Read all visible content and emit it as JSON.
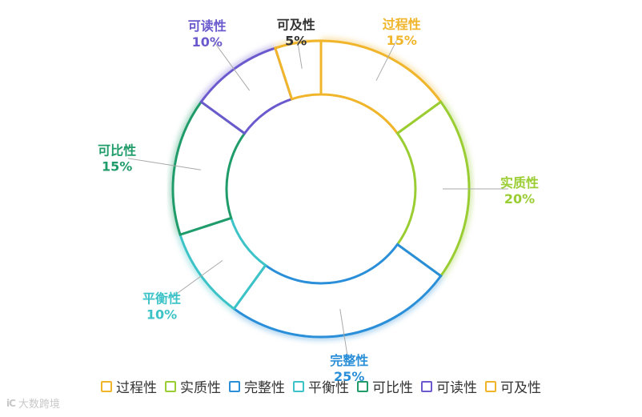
{
  "chart_data": {
    "type": "pie",
    "variant": "donut",
    "categories": [
      "过程性",
      "实质性",
      "完整性",
      "平衡性",
      "可比性",
      "可读性",
      "可及性"
    ],
    "values": [
      15,
      20,
      25,
      10,
      15,
      10,
      5
    ],
    "labels": [
      "15%",
      "20%",
      "25%",
      "10%",
      "15%",
      "10%",
      "5%"
    ],
    "colors": [
      "#f0b52a",
      "#9acd32",
      "#2a8fd8",
      "#3cc3c7",
      "#1f9c6a",
      "#6a5acd",
      "#f0b52a"
    ],
    "legend_position": "bottom"
  },
  "watermark": {
    "logo": "iC",
    "text": "大数跨境"
  }
}
